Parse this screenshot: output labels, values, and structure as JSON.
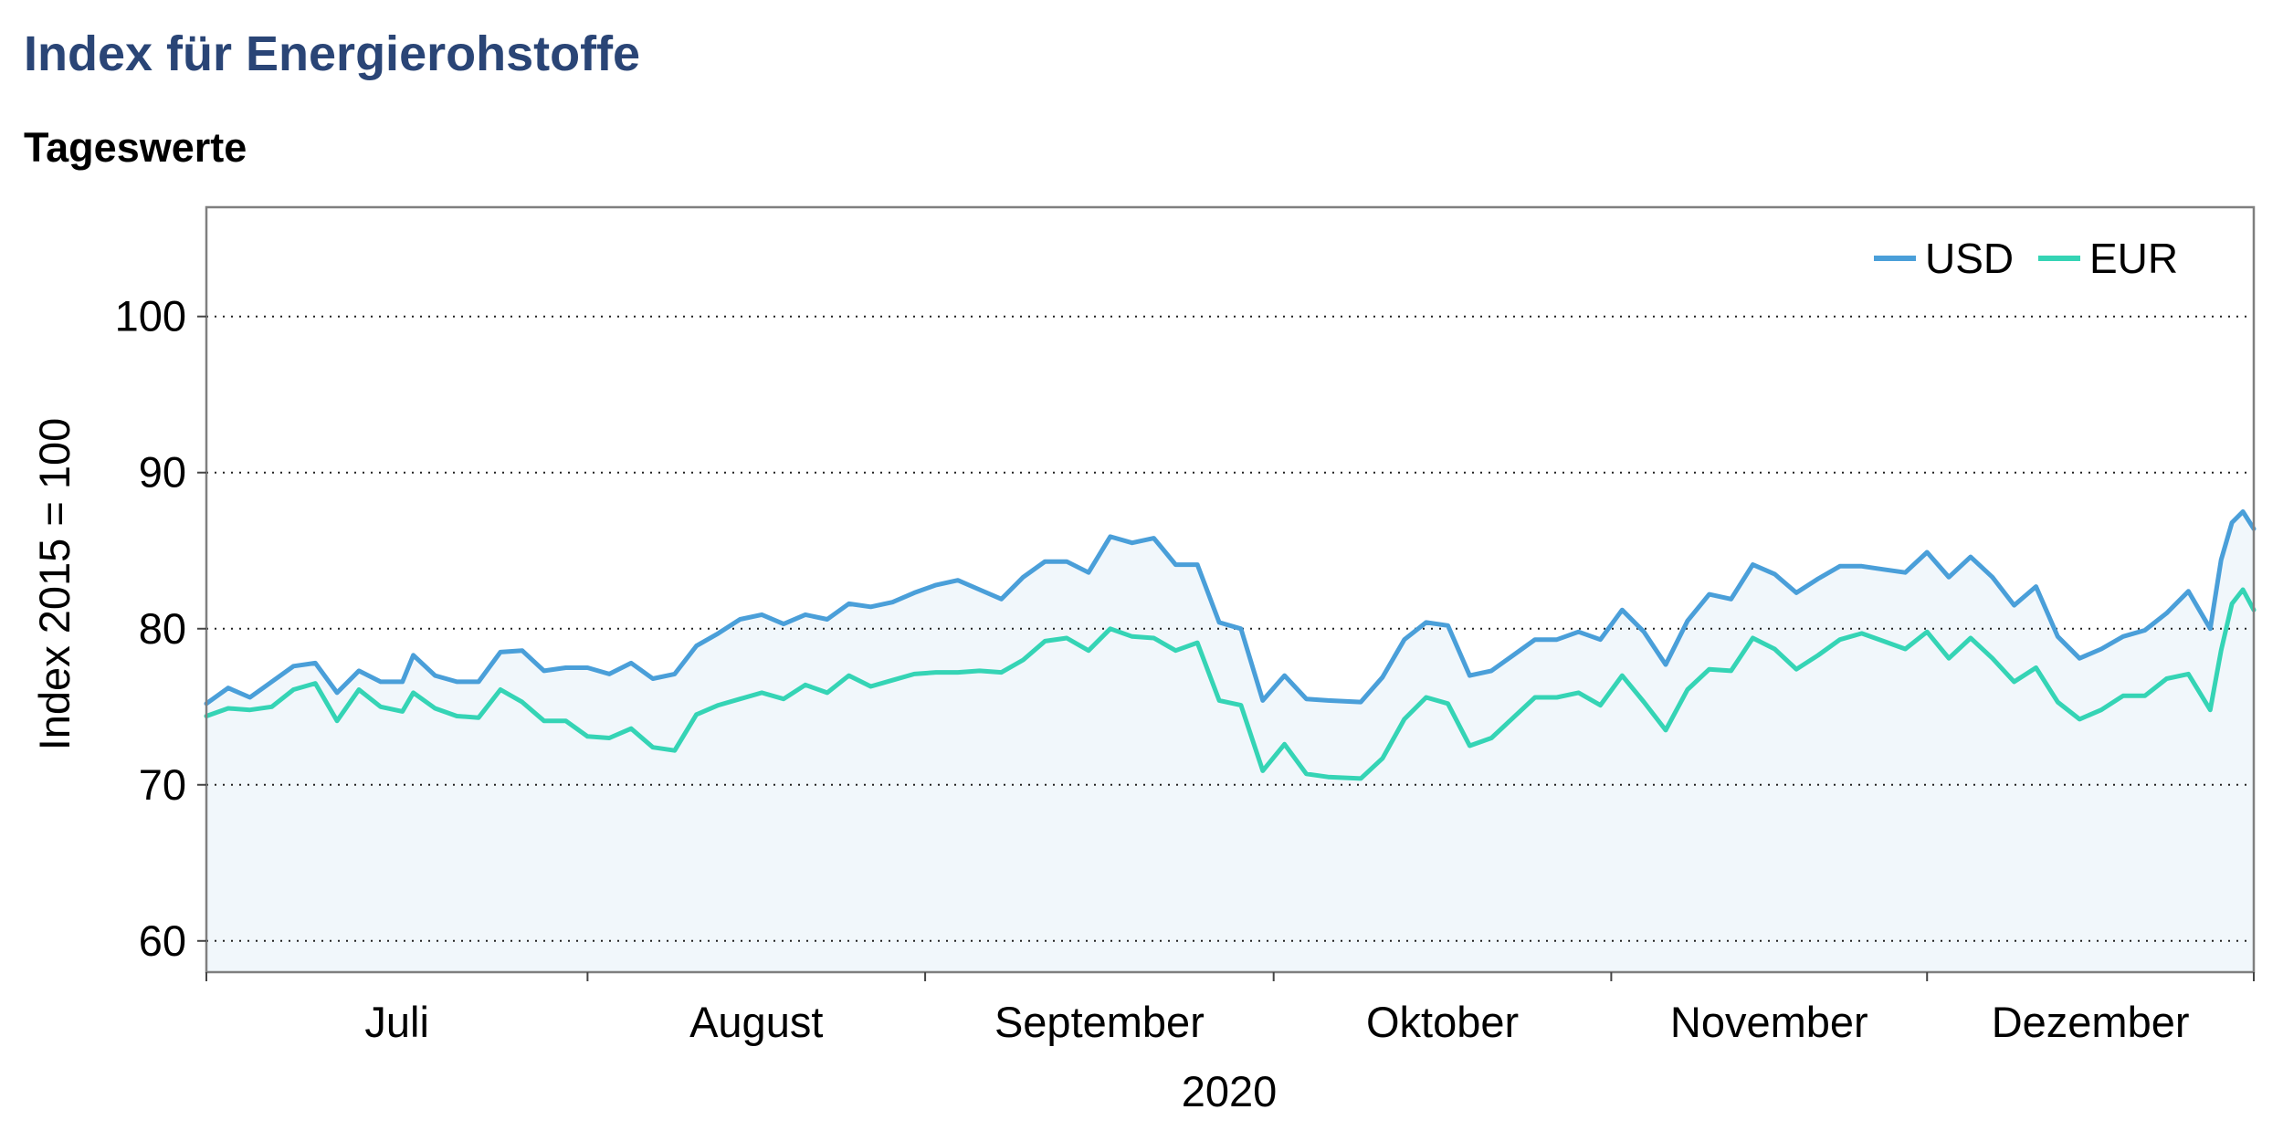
{
  "header": {
    "title": "Index für Energierohstoffe",
    "subtitle": "Tageswerte"
  },
  "chart_data": {
    "type": "area",
    "ylabel": "Index 2015 = 100",
    "xlabel": "2020",
    "ylim": [
      58,
      107
    ],
    "yticks": [
      60,
      70,
      80,
      90,
      100
    ],
    "x_categories": [
      "Juli",
      "August",
      "September",
      "Oktober",
      "November",
      "Dezember"
    ],
    "x_range": [
      "2020-06-26",
      "2020-12-31"
    ],
    "x_tick_marks": [
      "2020-06-26",
      "2020-07-31",
      "2020-08-31",
      "2020-10-02",
      "2020-11-02",
      "2020-12-01",
      "2020-12-31"
    ],
    "grid": "horizontal dotted",
    "legend": "top-right",
    "colors": {
      "USD": "#4a9fd9",
      "EUR": "#35d4b5",
      "fill": "#f1f7fb",
      "grid": "#222222",
      "frame": "#7f7f7f"
    },
    "series": [
      {
        "name": "USD",
        "points": [
          [
            "2020-06-26",
            75.2
          ],
          [
            "2020-06-28",
            76.2
          ],
          [
            "2020-06-30",
            75.6
          ],
          [
            "2020-07-02",
            76.6
          ],
          [
            "2020-07-04",
            77.6
          ],
          [
            "2020-07-06",
            77.8
          ],
          [
            "2020-07-08",
            75.9
          ],
          [
            "2020-07-10",
            77.3
          ],
          [
            "2020-07-12",
            76.6
          ],
          [
            "2020-07-14",
            76.6
          ],
          [
            "2020-07-15",
            78.3
          ],
          [
            "2020-07-17",
            77.0
          ],
          [
            "2020-07-19",
            76.6
          ],
          [
            "2020-07-21",
            76.6
          ],
          [
            "2020-07-23",
            78.5
          ],
          [
            "2020-07-25",
            78.6
          ],
          [
            "2020-07-27",
            77.3
          ],
          [
            "2020-07-29",
            77.5
          ],
          [
            "2020-07-31",
            77.5
          ],
          [
            "2020-08-02",
            77.1
          ],
          [
            "2020-08-04",
            77.8
          ],
          [
            "2020-08-06",
            76.8
          ],
          [
            "2020-08-08",
            77.1
          ],
          [
            "2020-08-10",
            78.9
          ],
          [
            "2020-08-12",
            79.7
          ],
          [
            "2020-08-14",
            80.6
          ],
          [
            "2020-08-16",
            80.9
          ],
          [
            "2020-08-18",
            80.3
          ],
          [
            "2020-08-20",
            80.9
          ],
          [
            "2020-08-22",
            80.6
          ],
          [
            "2020-08-24",
            81.6
          ],
          [
            "2020-08-26",
            81.4
          ],
          [
            "2020-08-28",
            81.7
          ],
          [
            "2020-08-30",
            82.3
          ],
          [
            "2020-09-01",
            82.8
          ],
          [
            "2020-09-03",
            83.1
          ],
          [
            "2020-09-05",
            82.5
          ],
          [
            "2020-09-07",
            81.9
          ],
          [
            "2020-09-09",
            83.3
          ],
          [
            "2020-09-11",
            84.3
          ],
          [
            "2020-09-13",
            84.3
          ],
          [
            "2020-09-15",
            83.6
          ],
          [
            "2020-09-17",
            85.9
          ],
          [
            "2020-09-19",
            85.5
          ],
          [
            "2020-09-21",
            85.8
          ],
          [
            "2020-09-23",
            84.1
          ],
          [
            "2020-09-25",
            84.1
          ],
          [
            "2020-09-27",
            80.4
          ],
          [
            "2020-09-29",
            80.0
          ],
          [
            "2020-10-01",
            75.4
          ],
          [
            "2020-10-03",
            77.0
          ],
          [
            "2020-10-05",
            75.5
          ],
          [
            "2020-10-07",
            75.4
          ],
          [
            "2020-10-10",
            75.3
          ],
          [
            "2020-10-12",
            76.9
          ],
          [
            "2020-10-14",
            79.3
          ],
          [
            "2020-10-16",
            80.4
          ],
          [
            "2020-10-18",
            80.2
          ],
          [
            "2020-10-20",
            77.0
          ],
          [
            "2020-10-22",
            77.3
          ],
          [
            "2020-10-24",
            78.3
          ],
          [
            "2020-10-26",
            79.3
          ],
          [
            "2020-10-28",
            79.3
          ],
          [
            "2020-10-30",
            79.8
          ],
          [
            "2020-11-01",
            79.3
          ],
          [
            "2020-11-03",
            81.2
          ],
          [
            "2020-11-05",
            79.8
          ],
          [
            "2020-11-07",
            77.7
          ],
          [
            "2020-11-09",
            80.5
          ],
          [
            "2020-11-11",
            82.2
          ],
          [
            "2020-11-13",
            81.9
          ],
          [
            "2020-11-15",
            84.1
          ],
          [
            "2020-11-17",
            83.5
          ],
          [
            "2020-11-19",
            82.3
          ],
          [
            "2020-11-21",
            83.2
          ],
          [
            "2020-11-23",
            84.0
          ],
          [
            "2020-11-25",
            84.0
          ],
          [
            "2020-11-27",
            83.8
          ],
          [
            "2020-11-29",
            83.6
          ],
          [
            "2020-12-01",
            84.9
          ],
          [
            "2020-12-03",
            83.3
          ],
          [
            "2020-12-05",
            84.6
          ],
          [
            "2020-12-07",
            83.3
          ],
          [
            "2020-12-09",
            81.5
          ],
          [
            "2020-12-11",
            82.7
          ],
          [
            "2020-12-13",
            79.5
          ],
          [
            "2020-12-15",
            78.1
          ],
          [
            "2020-12-17",
            78.7
          ],
          [
            "2020-12-19",
            79.5
          ],
          [
            "2020-12-21",
            79.9
          ],
          [
            "2020-12-23",
            81.0
          ],
          [
            "2020-12-25",
            82.4
          ],
          [
            "2020-12-27",
            80.0
          ],
          [
            "2020-12-28",
            84.4
          ],
          [
            "2020-12-29",
            86.8
          ],
          [
            "2020-12-30",
            87.5
          ],
          [
            "2020-12-31",
            86.4
          ]
        ]
      },
      {
        "name": "EUR",
        "points": [
          [
            "2020-06-26",
            74.4
          ],
          [
            "2020-06-28",
            74.9
          ],
          [
            "2020-06-30",
            74.8
          ],
          [
            "2020-07-02",
            75.0
          ],
          [
            "2020-07-04",
            76.1
          ],
          [
            "2020-07-06",
            76.5
          ],
          [
            "2020-07-08",
            74.1
          ],
          [
            "2020-07-10",
            76.1
          ],
          [
            "2020-07-12",
            75.0
          ],
          [
            "2020-07-14",
            74.7
          ],
          [
            "2020-07-15",
            75.9
          ],
          [
            "2020-07-17",
            74.9
          ],
          [
            "2020-07-19",
            74.4
          ],
          [
            "2020-07-21",
            74.3
          ],
          [
            "2020-07-23",
            76.1
          ],
          [
            "2020-07-25",
            75.3
          ],
          [
            "2020-07-27",
            74.1
          ],
          [
            "2020-07-29",
            74.1
          ],
          [
            "2020-07-31",
            73.1
          ],
          [
            "2020-08-02",
            73.0
          ],
          [
            "2020-08-04",
            73.6
          ],
          [
            "2020-08-06",
            72.4
          ],
          [
            "2020-08-08",
            72.2
          ],
          [
            "2020-08-10",
            74.5
          ],
          [
            "2020-08-12",
            75.1
          ],
          [
            "2020-08-14",
            75.5
          ],
          [
            "2020-08-16",
            75.9
          ],
          [
            "2020-08-18",
            75.5
          ],
          [
            "2020-08-20",
            76.4
          ],
          [
            "2020-08-22",
            75.9
          ],
          [
            "2020-08-24",
            77.0
          ],
          [
            "2020-08-26",
            76.3
          ],
          [
            "2020-08-28",
            76.7
          ],
          [
            "2020-08-30",
            77.1
          ],
          [
            "2020-09-01",
            77.2
          ],
          [
            "2020-09-03",
            77.2
          ],
          [
            "2020-09-05",
            77.3
          ],
          [
            "2020-09-07",
            77.2
          ],
          [
            "2020-09-09",
            78.0
          ],
          [
            "2020-09-11",
            79.2
          ],
          [
            "2020-09-13",
            79.4
          ],
          [
            "2020-09-15",
            78.6
          ],
          [
            "2020-09-17",
            80.0
          ],
          [
            "2020-09-19",
            79.5
          ],
          [
            "2020-09-21",
            79.4
          ],
          [
            "2020-09-23",
            78.6
          ],
          [
            "2020-09-25",
            79.1
          ],
          [
            "2020-09-27",
            75.4
          ],
          [
            "2020-09-29",
            75.1
          ],
          [
            "2020-10-01",
            70.9
          ],
          [
            "2020-10-03",
            72.6
          ],
          [
            "2020-10-05",
            70.7
          ],
          [
            "2020-10-07",
            70.5
          ],
          [
            "2020-10-10",
            70.4
          ],
          [
            "2020-10-12",
            71.7
          ],
          [
            "2020-10-14",
            74.2
          ],
          [
            "2020-10-16",
            75.6
          ],
          [
            "2020-10-18",
            75.2
          ],
          [
            "2020-10-20",
            72.5
          ],
          [
            "2020-10-22",
            73.0
          ],
          [
            "2020-10-24",
            74.3
          ],
          [
            "2020-10-26",
            75.6
          ],
          [
            "2020-10-28",
            75.6
          ],
          [
            "2020-10-30",
            75.9
          ],
          [
            "2020-11-01",
            75.1
          ],
          [
            "2020-11-03",
            77.0
          ],
          [
            "2020-11-05",
            75.3
          ],
          [
            "2020-11-07",
            73.5
          ],
          [
            "2020-11-09",
            76.1
          ],
          [
            "2020-11-11",
            77.4
          ],
          [
            "2020-11-13",
            77.3
          ],
          [
            "2020-11-15",
            79.4
          ],
          [
            "2020-11-17",
            78.7
          ],
          [
            "2020-11-19",
            77.4
          ],
          [
            "2020-11-21",
            78.3
          ],
          [
            "2020-11-23",
            79.3
          ],
          [
            "2020-11-25",
            79.7
          ],
          [
            "2020-11-27",
            79.2
          ],
          [
            "2020-11-29",
            78.7
          ],
          [
            "2020-12-01",
            79.8
          ],
          [
            "2020-12-03",
            78.1
          ],
          [
            "2020-12-05",
            79.4
          ],
          [
            "2020-12-07",
            78.1
          ],
          [
            "2020-12-09",
            76.6
          ],
          [
            "2020-12-11",
            77.5
          ],
          [
            "2020-12-13",
            75.3
          ],
          [
            "2020-12-15",
            74.2
          ],
          [
            "2020-12-17",
            74.8
          ],
          [
            "2020-12-19",
            75.7
          ],
          [
            "2020-12-21",
            75.7
          ],
          [
            "2020-12-23",
            76.8
          ],
          [
            "2020-12-25",
            77.1
          ],
          [
            "2020-12-27",
            74.8
          ],
          [
            "2020-12-28",
            78.6
          ],
          [
            "2020-12-29",
            81.6
          ],
          [
            "2020-12-30",
            82.5
          ],
          [
            "2020-12-31",
            81.2
          ]
        ]
      }
    ]
  }
}
